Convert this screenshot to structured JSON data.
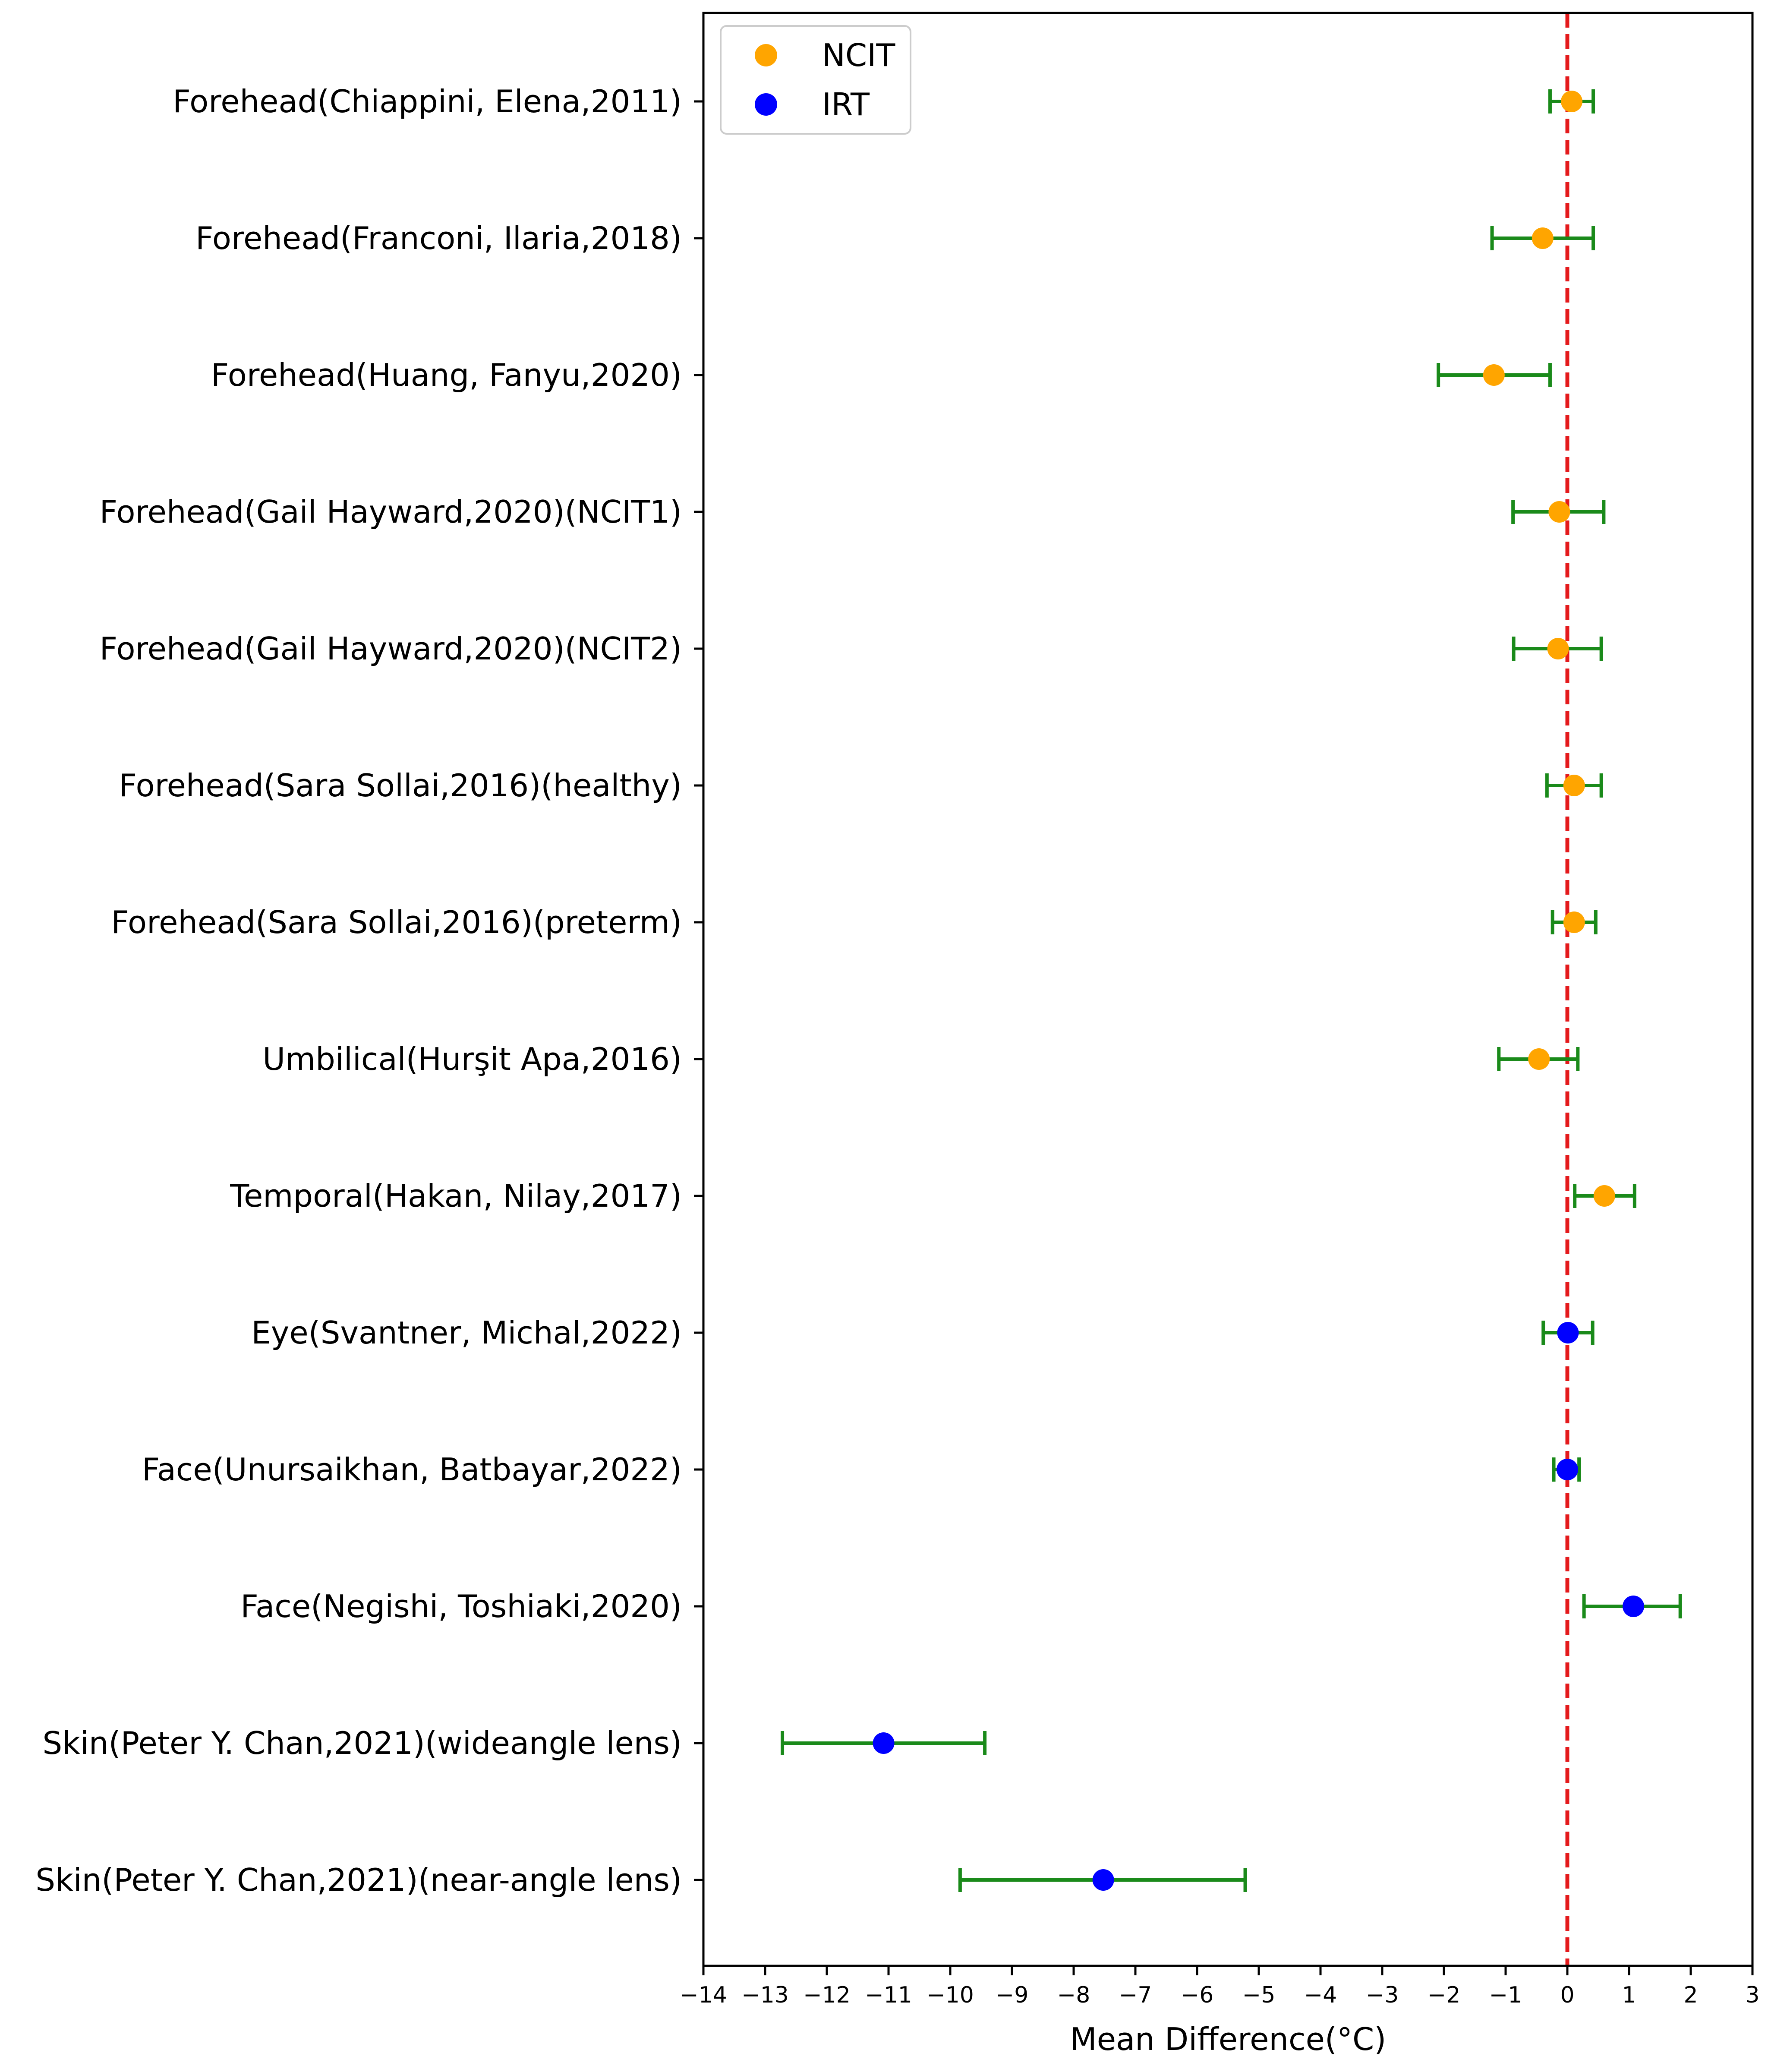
{
  "chart_data": {
    "type": "scatter",
    "title": "",
    "xlabel": "Mean Difference(°C)",
    "ylabel": "",
    "xlim": [
      -14,
      3
    ],
    "xticks": [
      -14,
      -13,
      -12,
      -11,
      -10,
      -9,
      -8,
      -7,
      -6,
      -5,
      -4,
      -3,
      -2,
      -1,
      0,
      1,
      2,
      3
    ],
    "xtick_labels": [
      "−14",
      "−13",
      "−12",
      "−11",
      "−10",
      "−9",
      "−8",
      "−7",
      "−6",
      "−5",
      "−4",
      "−3",
      "−2",
      "−1",
      "0",
      "1",
      "2",
      "3"
    ],
    "reference_line": {
      "x": 0,
      "color": "#e41a1c",
      "style": "dashed"
    },
    "error_bar_color": "#1a8a1a",
    "legend": {
      "position": "top-left",
      "entries": [
        {
          "label": "NCIT",
          "color": "#ffa500"
        },
        {
          "label": "IRT",
          "color": "#0000ff"
        }
      ]
    },
    "studies": [
      {
        "label": "Forehead(Chiappini, Elena,2011)",
        "group": "NCIT",
        "mean": 0.07,
        "lower": -0.28,
        "upper": 0.42
      },
      {
        "label": "Forehead(Franconi, Ilaria,2018)",
        "group": "NCIT",
        "mean": -0.4,
        "lower": -1.22,
        "upper": 0.42
      },
      {
        "label": "Forehead(Huang, Fanyu,2020)",
        "group": "NCIT",
        "mean": -1.19,
        "lower": -2.09,
        "upper": -0.28
      },
      {
        "label": "Forehead(Gail Hayward,2020)(NCIT1)",
        "group": "NCIT",
        "mean": -0.13,
        "lower": -0.88,
        "upper": 0.59
      },
      {
        "label": "Forehead(Gail Hayward,2020)(NCIT2)",
        "group": "NCIT",
        "mean": -0.15,
        "lower": -0.87,
        "upper": 0.55
      },
      {
        "label": "Forehead(Sara Sollai,2016)(healthy)",
        "group": "NCIT",
        "mean": 0.11,
        "lower": -0.33,
        "upper": 0.55
      },
      {
        "label": "Forehead(Sara Sollai,2016)(preterm)",
        "group": "NCIT",
        "mean": 0.11,
        "lower": -0.24,
        "upper": 0.46
      },
      {
        "label": "Umbilical(Hurşit Apa,2016)",
        "group": "NCIT",
        "mean": -0.46,
        "lower": -1.11,
        "upper": 0.17
      },
      {
        "label": "Temporal(Hakan, Nilay,2017)",
        "group": "NCIT",
        "mean": 0.6,
        "lower": 0.12,
        "upper": 1.09
      },
      {
        "label": "Eye(Svantner, Michal,2022)",
        "group": "IRT",
        "mean": 0.01,
        "lower": -0.39,
        "upper": 0.41
      },
      {
        "label": "Face(Unursaikhan, Batbayar,2022)",
        "group": "IRT",
        "mean": 0.0,
        "lower": -0.22,
        "upper": 0.19
      },
      {
        "label": "Face(Negishi, Toshiaki,2020)",
        "group": "IRT",
        "mean": 1.07,
        "lower": 0.27,
        "upper": 1.83
      },
      {
        "label": "Skin(Peter Y. Chan,2021)(wideangle lens)",
        "group": "IRT",
        "mean": -11.08,
        "lower": -12.72,
        "upper": -9.44
      },
      {
        "label": "Skin(Peter Y. Chan,2021)(near-angle lens)",
        "group": "IRT",
        "mean": -7.52,
        "lower": -9.84,
        "upper": -5.22
      }
    ]
  }
}
